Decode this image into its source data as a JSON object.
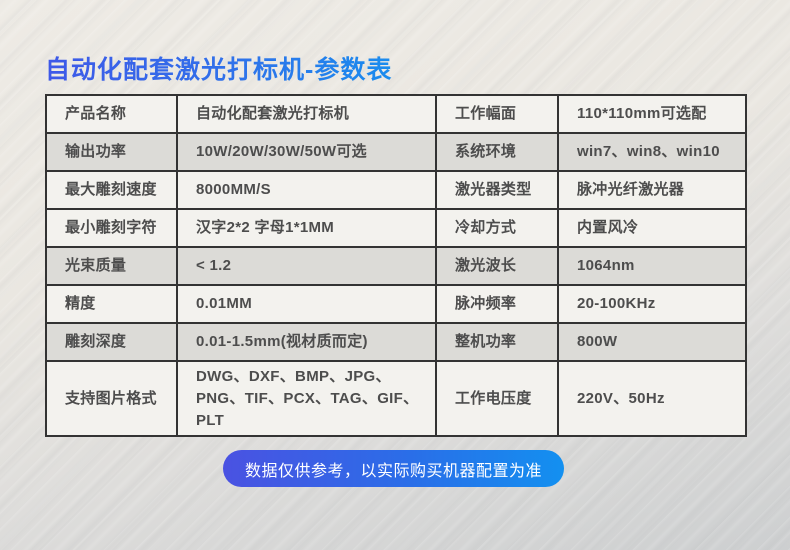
{
  "page": {
    "title": "自动化配套激光打标机-参数表",
    "disclaimer": "数据仅供参考，以实际购买机器配置为准"
  },
  "colors": {
    "title_gradient_start": "#3e58e8",
    "title_gradient_end": "#1a8cee",
    "pill_gradient_start": "#4a52e2",
    "pill_gradient_end": "#1390f0",
    "row_light": "#f3f2ee",
    "row_dark": "#dcdbd7",
    "table_border": "#333333",
    "table_text": "#4d4d4d",
    "background": "#e9e6e0"
  },
  "table": {
    "rows": [
      {
        "label1": "产品名称",
        "value1": "自动化配套激光打标机",
        "label2": "工作幅面",
        "value2": "110*110mm可选配"
      },
      {
        "label1": "输出功率",
        "value1": "10W/20W/30W/50W可选",
        "label2": "系统环境",
        "value2": "win7、win8、win10"
      },
      {
        "label1": "最大雕刻速度",
        "value1": "8000MM/S",
        "label2": "激光器类型",
        "value2": "脉冲光纤激光器"
      },
      {
        "label1": "最小雕刻字符",
        "value1": "汉字2*2 字母1*1MM",
        "label2": "冷却方式",
        "value2": "内置风冷"
      },
      {
        "label1": "光束质量",
        "value1": "< 1.2",
        "label2": "激光波长",
        "value2": "1064nm"
      },
      {
        "label1": "精度",
        "value1": "0.01MM",
        "label2": "脉冲频率",
        "value2": "20-100KHz"
      },
      {
        "label1": "雕刻深度",
        "value1": "0.01-1.5mm(视材质而定)",
        "label2": "整机功率",
        "value2": "800W"
      },
      {
        "label1": "支持图片格式",
        "value1": "DWG、DXF、BMP、JPG、PNG、TIF、PCX、TAG、GIF、PLT",
        "label2": "工作电压度",
        "value2": "220V、50Hz"
      }
    ]
  }
}
